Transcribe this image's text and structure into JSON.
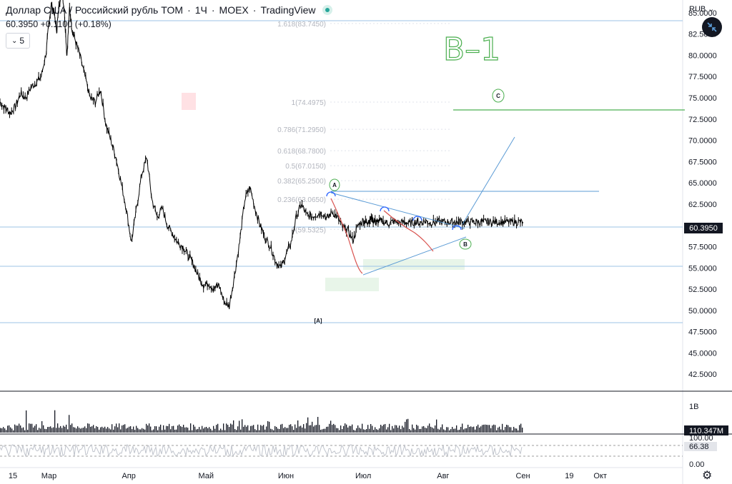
{
  "header": {
    "title": "Доллар США / Российский рубль TOM",
    "interval": "1Ч",
    "exchange": "MOEX",
    "source": "TradingView",
    "price_line": "60.3950 +0.1100 (+0.18%)",
    "collapse_count": "5",
    "currency": "RUB"
  },
  "colors": {
    "candles": "#000000",
    "hline": "#9cc3e6",
    "triangle": "#5b9bd5",
    "wave_red": "#d9534f",
    "target_green": "#4caf50",
    "fib_text": "#b2b5be",
    "zone_green": "#e8f5e9",
    "zone_red": "#ffcdd2",
    "price_badge": "#131722"
  },
  "chart_data": {
    "type": "line",
    "title": "",
    "ylim": [
      40.5,
      86.5
    ],
    "y_ticks": [
      42.5,
      45.0,
      47.5,
      50.0,
      52.5,
      55.0,
      57.5,
      60.0,
      62.5,
      65.0,
      67.5,
      70.0,
      72.5,
      75.0,
      77.5,
      80.0,
      82.5,
      85.0
    ],
    "y_tick_labels": [
      "42.5000",
      "45.0000",
      "47.5000",
      "50.0000",
      "52.5000",
      "55.0000",
      "57.5000",
      "60.0000",
      "62.5000",
      "65.0000",
      "67.5000",
      "70.0000",
      "72.5000",
      "75.0000",
      "77.5000",
      "80.0000",
      "82.5000",
      "85.0000"
    ],
    "x_tick_labels": [
      "15",
      "Мар",
      "Апр",
      "Май",
      "Июн",
      "Июл",
      "Авг",
      "Сен",
      "19",
      "Окт"
    ],
    "x_tick_days": [
      -14,
      0,
      31,
      61,
      92,
      122,
      153,
      184,
      202,
      214
    ],
    "xlim_days": [
      -19,
      246
    ],
    "x_unit": "days since 1 Mar",
    "last_price": 60.395,
    "last_price_label": "60.3950",
    "series": [
      {
        "x": [
          -19,
          -17,
          -15,
          -13,
          -11,
          -9,
          -7,
          -5,
          -3,
          -1,
          0,
          1,
          2,
          3,
          4,
          5,
          6,
          7,
          8,
          9,
          10,
          12,
          14,
          16,
          18,
          20,
          22,
          24,
          26,
          28,
          30,
          32,
          34,
          36,
          38,
          40,
          42,
          44,
          46,
          48,
          50,
          52,
          54,
          56,
          58,
          60,
          62,
          64,
          66,
          68,
          70,
          72,
          74,
          76,
          78,
          80,
          82,
          84,
          86,
          88,
          90,
          92,
          94,
          96,
          98,
          100,
          102,
          104,
          106,
          108,
          110,
          112,
          114,
          116,
          118,
          120,
          122,
          123,
          124,
          125,
          126,
          127,
          128,
          130,
          132,
          134,
          136,
          138,
          140,
          142,
          144,
          146,
          148,
          150,
          152,
          154,
          156,
          158,
          160,
          162,
          164,
          166,
          168,
          170,
          172,
          174,
          176,
          178,
          180,
          182,
          184
        ],
        "values": [
          74.5,
          73.8,
          73.2,
          74.0,
          75.5,
          75.0,
          76.2,
          76.8,
          77.5,
          80.5,
          84.0,
          86.0,
          85.0,
          83.0,
          86.0,
          88.0,
          85.0,
          80.0,
          85.5,
          83.0,
          82.0,
          80.0,
          77.5,
          75.0,
          74.5,
          76.0,
          72.0,
          70.0,
          68.0,
          65.0,
          62.0,
          58.0,
          62.0,
          66.0,
          68.0,
          63.0,
          61.0,
          62.0,
          60.0,
          59.0,
          58.0,
          57.5,
          56.5,
          55.5,
          54.0,
          53.0,
          53.2,
          52.5,
          53.0,
          51.0,
          50.5,
          54.0,
          58.0,
          63.0,
          64.5,
          62.0,
          60.0,
          58.5,
          57.5,
          55.8,
          55.0,
          56.5,
          58.0,
          61.0,
          62.5,
          61.2,
          61.0,
          61.3,
          61.5,
          60.8,
          61.6,
          60.9,
          59.8,
          59.4,
          58.2,
          60.0,
          60.6,
          60.3,
          60.5,
          60.8,
          60.6,
          60.3,
          60.5,
          60.4,
          60.2,
          60.5,
          60.3,
          60.4,
          60.2,
          60.4,
          60.3,
          60.5,
          60.3,
          60.4,
          60.4,
          60.4,
          60.4,
          60.4,
          60.4,
          60.4,
          60.4,
          60.4,
          60.4,
          60.4,
          60.4,
          60.4,
          60.4,
          60.4,
          60.4,
          60.4,
          60.4
        ]
      }
    ],
    "fib_levels": [
      {
        "label": "1.618(83.7450)",
        "value": 83.745
      },
      {
        "label": "1(74.4975)",
        "value": 74.4975
      },
      {
        "label": "0.786(71.2950)",
        "value": 71.295
      },
      {
        "label": "0.618(68.7800)",
        "value": 68.78
      },
      {
        "label": "0.5(67.0150)",
        "value": 67.015
      },
      {
        "label": "0.382(65.2500)",
        "value": 65.25
      },
      {
        "label": "0.236(63.0650)",
        "value": 63.065
      },
      {
        "label": "0(59.5325)",
        "value": 59.5325
      }
    ],
    "annotations": {
      "wave_A": "A",
      "wave_B": "B",
      "wave_C": "C",
      "wave_bracket_A": "[A]",
      "handwritten": "B–1"
    },
    "volume": {
      "label_1b": "1B",
      "last_label": "110.347M"
    },
    "oscillator": {
      "levels": [
        "100.00",
        "66.38",
        "0.00"
      ],
      "last_value": 66.38
    }
  }
}
